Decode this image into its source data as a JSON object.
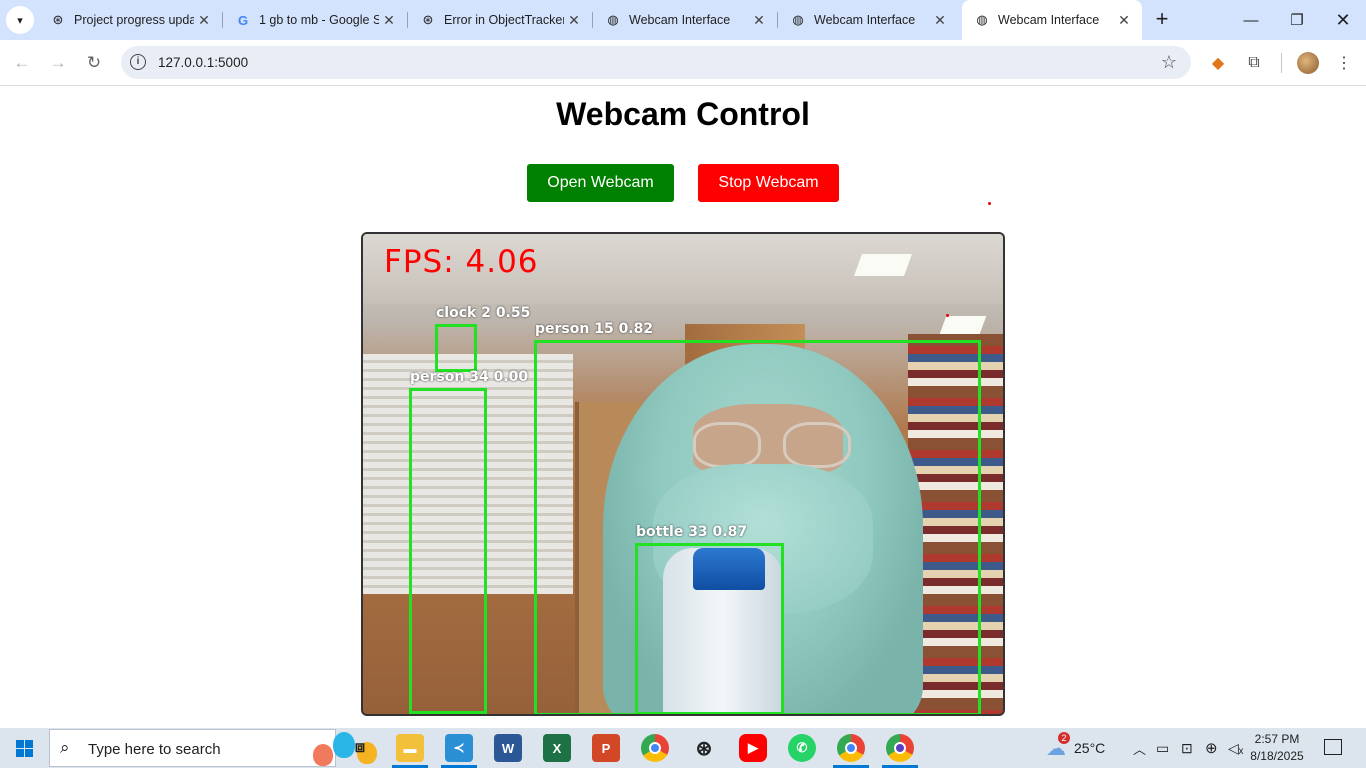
{
  "browser": {
    "tabs": [
      {
        "title": "Project progress upda",
        "icon": "chatgpt-icon"
      },
      {
        "title": "1 gb to mb - Google S",
        "icon": "google-icon"
      },
      {
        "title": "Error in ObjectTracker",
        "icon": "chatgpt-icon"
      },
      {
        "title": "Webcam Interface",
        "icon": "globe-icon"
      },
      {
        "title": "Webcam Interface",
        "icon": "globe-icon"
      },
      {
        "title": "Webcam Interface",
        "icon": "globe-icon",
        "active": true
      }
    ],
    "url": "127.0.0.1:5000"
  },
  "page": {
    "heading": "Webcam Control",
    "open_button": "Open Webcam",
    "stop_button": "Stop Webcam",
    "colors": {
      "open": "#008000",
      "stop": "#ff0000",
      "box": "#22e022",
      "fps": "#ff0000"
    }
  },
  "feed": {
    "fps": "FPS: 4.06",
    "detections": [
      {
        "label": "clock 2 0.55"
      },
      {
        "label": "person 15 0.82"
      },
      {
        "label": "person 34 0.00"
      },
      {
        "label": "bottle 33 0.87"
      }
    ]
  },
  "taskbar": {
    "search_placeholder": "Type here to search",
    "weather": "25°C",
    "weather_badge": "2",
    "time": "2:57 PM",
    "date": "8/18/2025"
  }
}
